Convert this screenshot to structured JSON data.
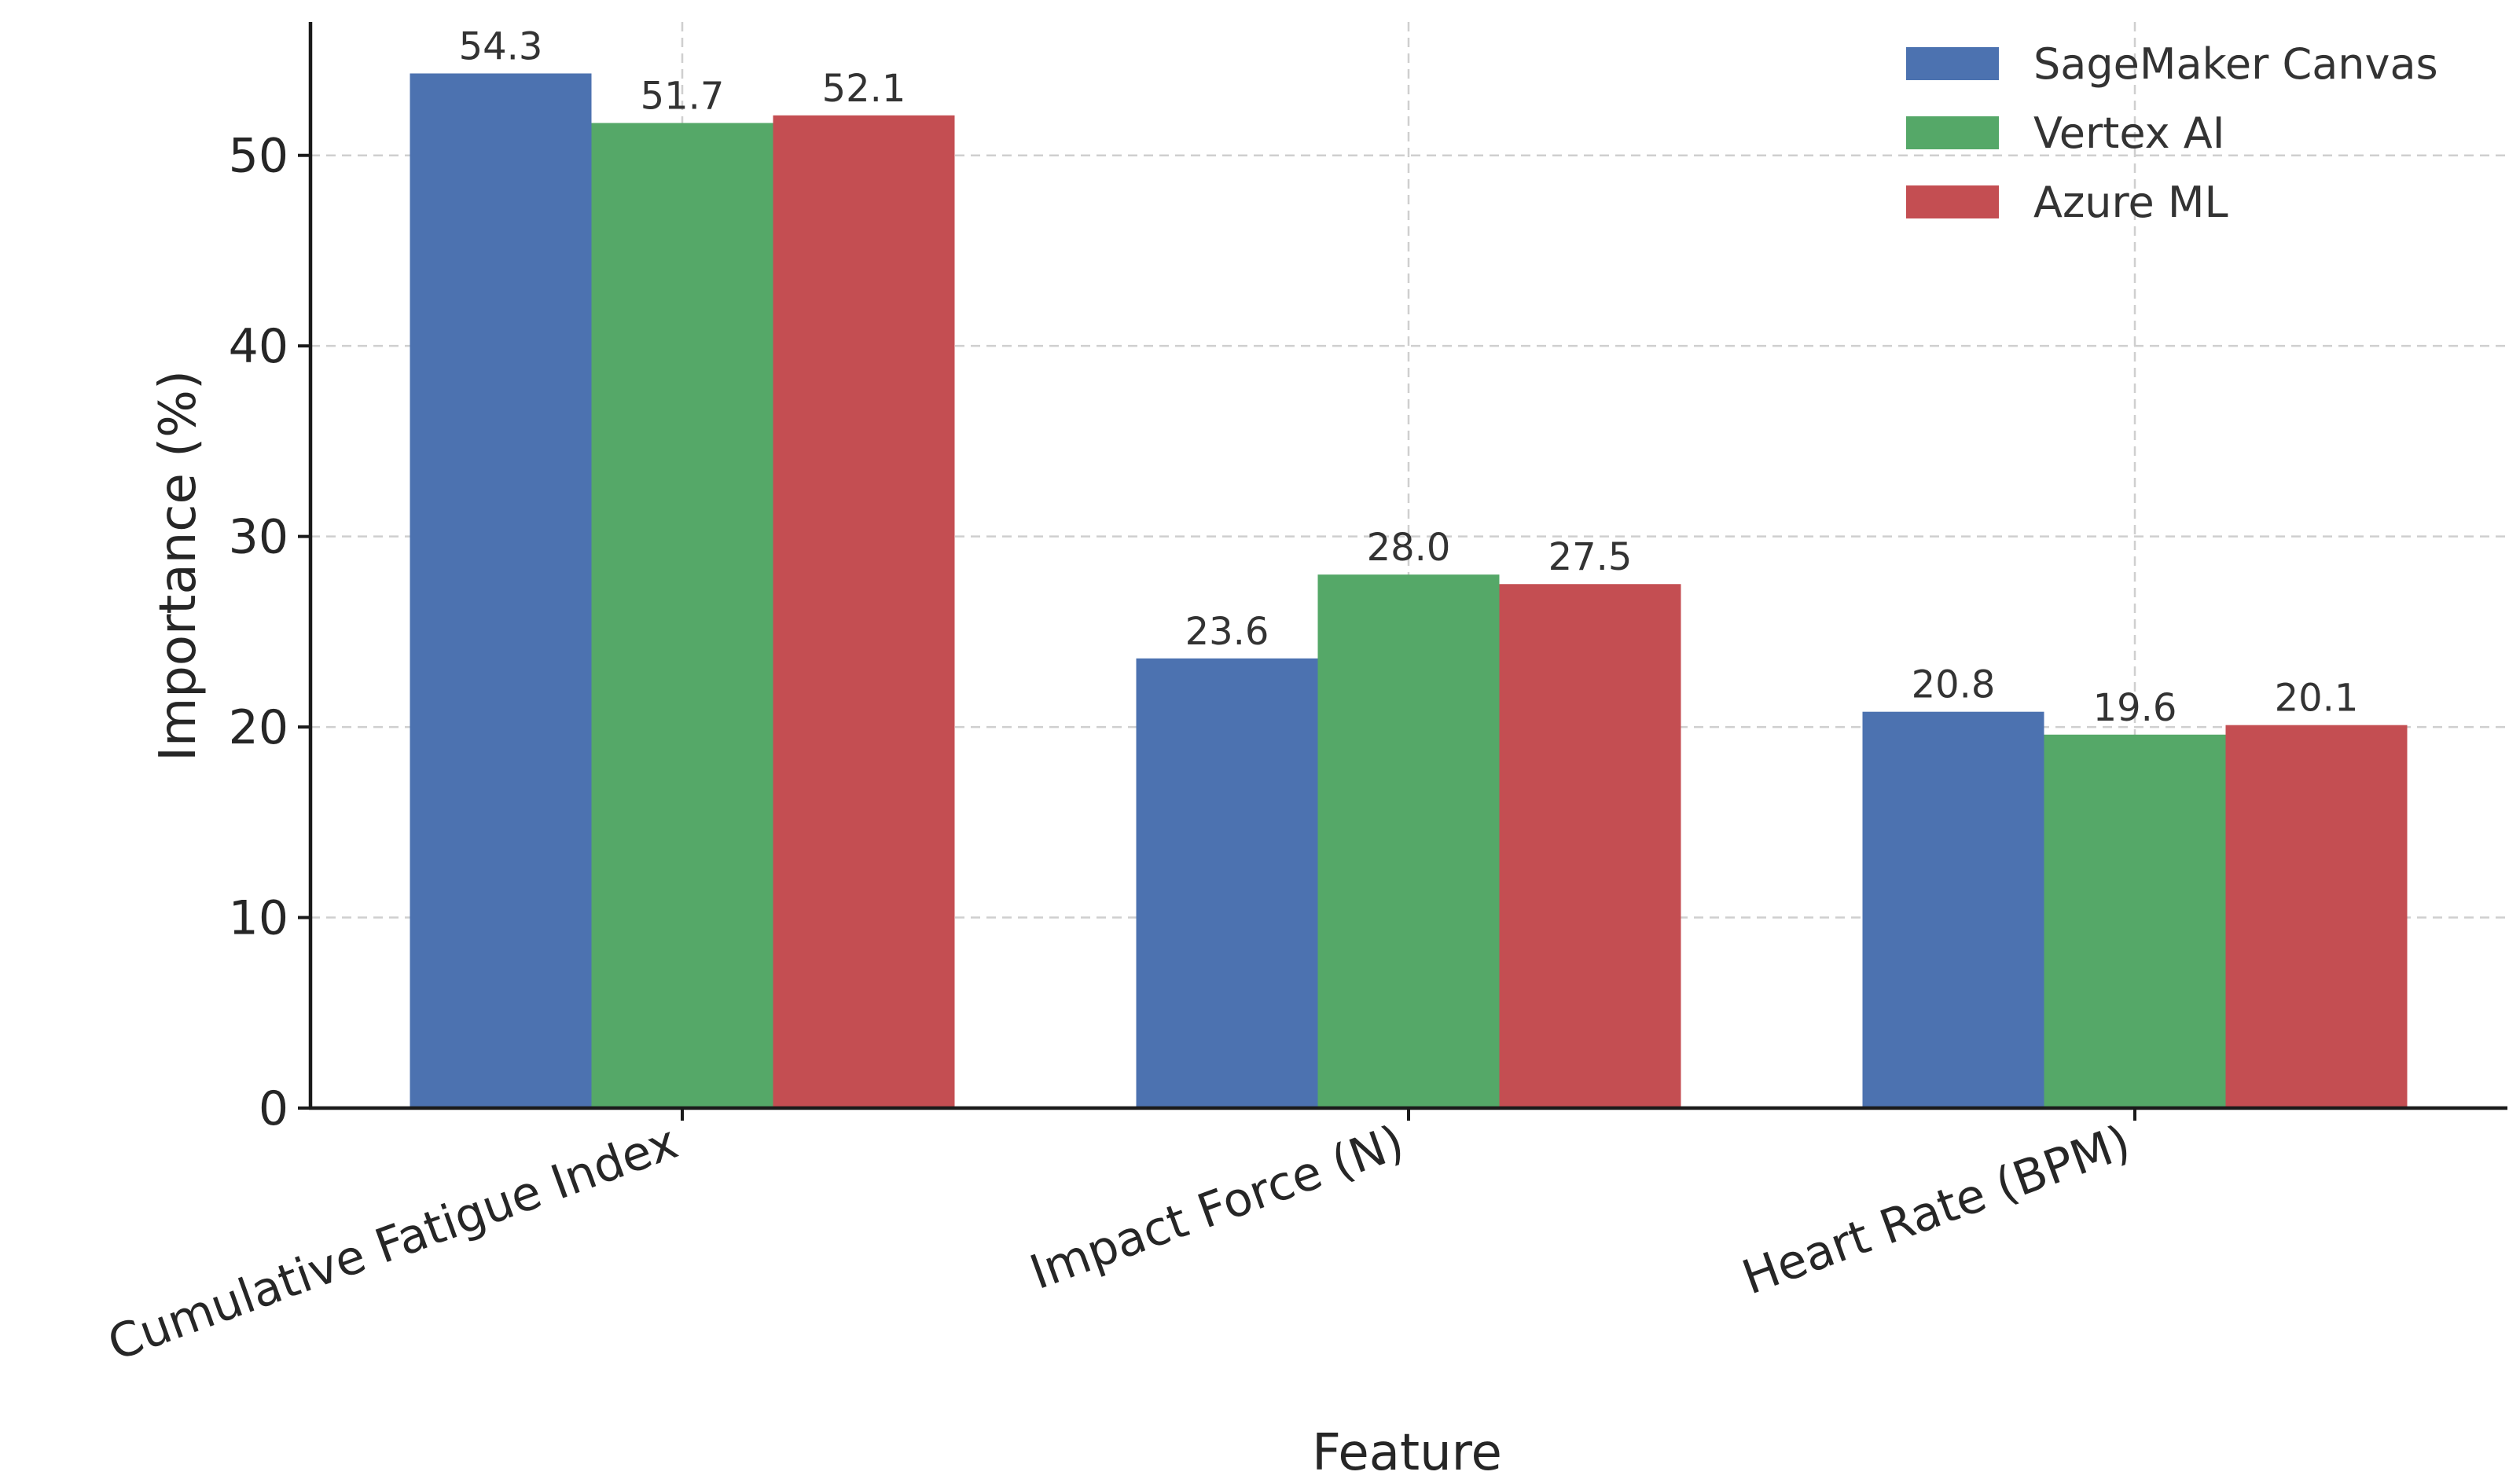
{
  "chart_data": {
    "type": "bar",
    "title": "",
    "xlabel": "Feature",
    "ylabel": "Importance (%)",
    "categories": [
      "Cumulative Fatigue Index",
      "Impact Force (N)",
      "Heart Rate (BPM)"
    ],
    "series": [
      {
        "name": "SageMaker Canvas",
        "color": "#4c72b0",
        "values": [
          54.3,
          23.6,
          20.8
        ]
      },
      {
        "name": "Vertex AI",
        "color": "#55a868",
        "values": [
          51.7,
          28.0,
          19.6
        ]
      },
      {
        "name": "Azure ML",
        "color": "#c44e52",
        "values": [
          52.1,
          27.5,
          20.1
        ]
      }
    ],
    "ylim": [
      0,
      57
    ],
    "yticks": [
      0,
      10,
      20,
      30,
      40,
      50
    ],
    "grid": true,
    "legend_position": "top-right",
    "value_label_format": "one-decimal"
  }
}
